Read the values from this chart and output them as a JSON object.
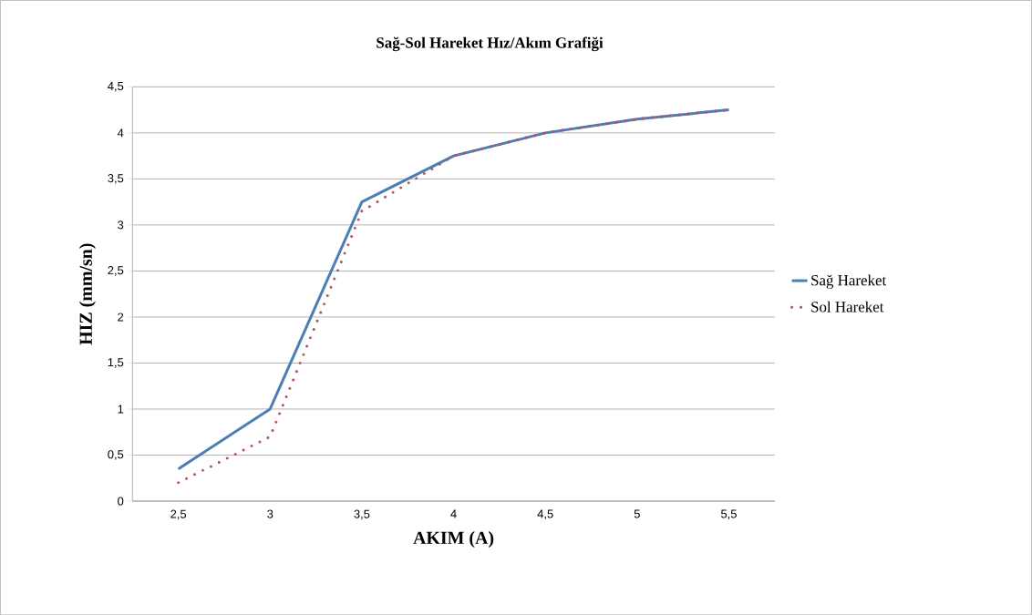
{
  "chart_data": {
    "type": "line",
    "title": "Sağ-Sol Hareket Hız/Akım  Grafiği",
    "xlabel": "AKIM (A)",
    "ylabel": "HIZ (mm/sn)",
    "categories": [
      "2,5",
      "3",
      "3,5",
      "4",
      "4,5",
      "5",
      "5,5"
    ],
    "series": [
      {
        "name": "Sağ Hareket",
        "color": "#4a7ebb",
        "line_style": "solid",
        "values": [
          0.35,
          1.0,
          3.25,
          3.75,
          4.0,
          4.15,
          4.25
        ]
      },
      {
        "name": "Sol Hareket",
        "color": "#c0504d",
        "line_style": "dotted",
        "values": [
          0.2,
          0.7,
          3.15,
          3.75,
          4.0,
          4.15,
          4.25
        ]
      }
    ],
    "ylim": [
      0,
      4.5
    ],
    "yticks": [
      {
        "value": 0,
        "label": "0"
      },
      {
        "value": 0.5,
        "label": "0,5"
      },
      {
        "value": 1,
        "label": "1"
      },
      {
        "value": 1.5,
        "label": "1,5"
      },
      {
        "value": 2,
        "label": "2"
      },
      {
        "value": 2.5,
        "label": "2,5"
      },
      {
        "value": 3,
        "label": "3"
      },
      {
        "value": 3.5,
        "label": "3,5"
      },
      {
        "value": 4,
        "label": "4"
      },
      {
        "value": 4.5,
        "label": "4,5"
      }
    ],
    "grid": "y",
    "legend": "right",
    "marker": "none"
  }
}
